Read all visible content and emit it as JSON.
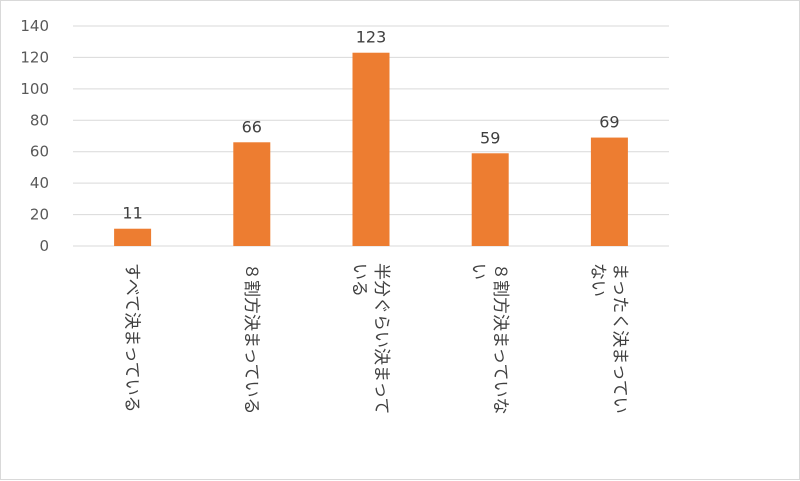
{
  "chart_data": {
    "type": "bar",
    "title": "",
    "xlabel": "",
    "ylabel": "",
    "categories": [
      [
        "すべて決まっている"
      ],
      [
        "８割方決まっている"
      ],
      [
        "半分ぐらい決まって",
        "いる"
      ],
      [
        "８割方決まっていな",
        "い"
      ],
      [
        "まったく決まってい",
        "ない"
      ]
    ],
    "values": [
      11,
      66,
      123,
      59,
      69
    ],
    "ylim": [
      0,
      140
    ],
    "yticks": [
      0,
      20,
      40,
      60,
      80,
      100,
      120,
      140
    ],
    "grid": true,
    "legend": "none",
    "bar_color": "#ED7D31",
    "grid_color": "#D9D9D9"
  }
}
